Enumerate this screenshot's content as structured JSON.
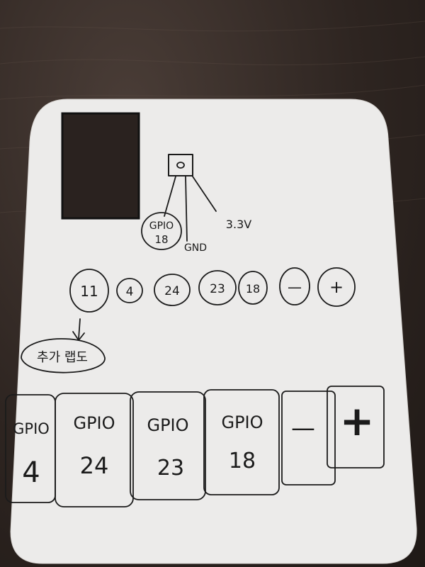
{
  "sensor": {
    "pin_labels": [
      "GPIO",
      "18",
      "GND",
      "3.3V"
    ]
  },
  "button_row": {
    "labels": [
      "11",
      "4",
      "24",
      "23",
      "18",
      "—",
      "+"
    ]
  },
  "note": {
    "text": "추가 랩도"
  },
  "tiles": [
    {
      "line1": "GPIO",
      "line2": "4"
    },
    {
      "line1": "GPIO",
      "line2": "24"
    },
    {
      "line1": "GPIO",
      "line2": "23"
    },
    {
      "line1": "GPIO",
      "line2": "18"
    },
    {
      "line1": "—",
      "line2": ""
    },
    {
      "line1": "+",
      "line2": ""
    }
  ]
}
